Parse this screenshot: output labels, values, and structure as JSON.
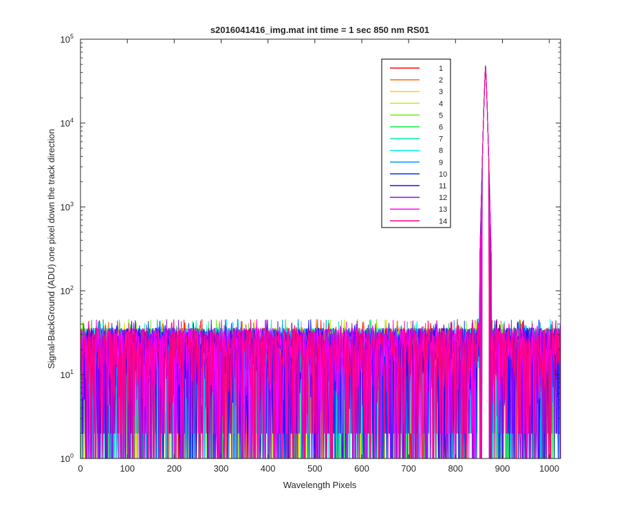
{
  "chart_data": {
    "type": "line",
    "title": "s2016041416_img.mat int time = 1 sec  850 nm RS01",
    "xlabel": "Wavelength Pixels",
    "ylabel": "Signal-BackGround (ADU) one pixel down the track direction",
    "xlim": [
      0,
      1024
    ],
    "ylim": [
      1,
      100000
    ],
    "yscale": "log",
    "x_ticks": [
      0,
      100,
      200,
      300,
      400,
      500,
      600,
      700,
      800,
      900,
      1000
    ],
    "y_ticks": [
      {
        "value": 1,
        "base": "10",
        "exp": "0"
      },
      {
        "value": 10,
        "base": "10",
        "exp": "1"
      },
      {
        "value": 100,
        "base": "10",
        "exp": "2"
      },
      {
        "value": 1000,
        "base": "10",
        "exp": "3"
      },
      {
        "value": 10000,
        "base": "10",
        "exp": "4"
      },
      {
        "value": 100000,
        "base": "10",
        "exp": "5"
      }
    ],
    "grid": false,
    "legend_position": "top-right",
    "peak": {
      "x": 864,
      "y": 48000
    },
    "noise_range": [
      1,
      45
    ],
    "series": [
      {
        "name": "1",
        "color": "#FF0000"
      },
      {
        "name": "2",
        "color": "#FF6A00"
      },
      {
        "name": "3",
        "color": "#FFD000"
      },
      {
        "name": "4",
        "color": "#C8F000"
      },
      {
        "name": "5",
        "color": "#66F000"
      },
      {
        "name": "6",
        "color": "#00F040"
      },
      {
        "name": "7",
        "color": "#00F0A0"
      },
      {
        "name": "8",
        "color": "#00F0F0"
      },
      {
        "name": "9",
        "color": "#0099FF"
      },
      {
        "name": "10",
        "color": "#0033FF"
      },
      {
        "name": "11",
        "color": "#3300FF"
      },
      {
        "name": "12",
        "color": "#9900FF"
      },
      {
        "name": "13",
        "color": "#FF00FF"
      },
      {
        "name": "14",
        "color": "#FF0080"
      }
    ]
  }
}
